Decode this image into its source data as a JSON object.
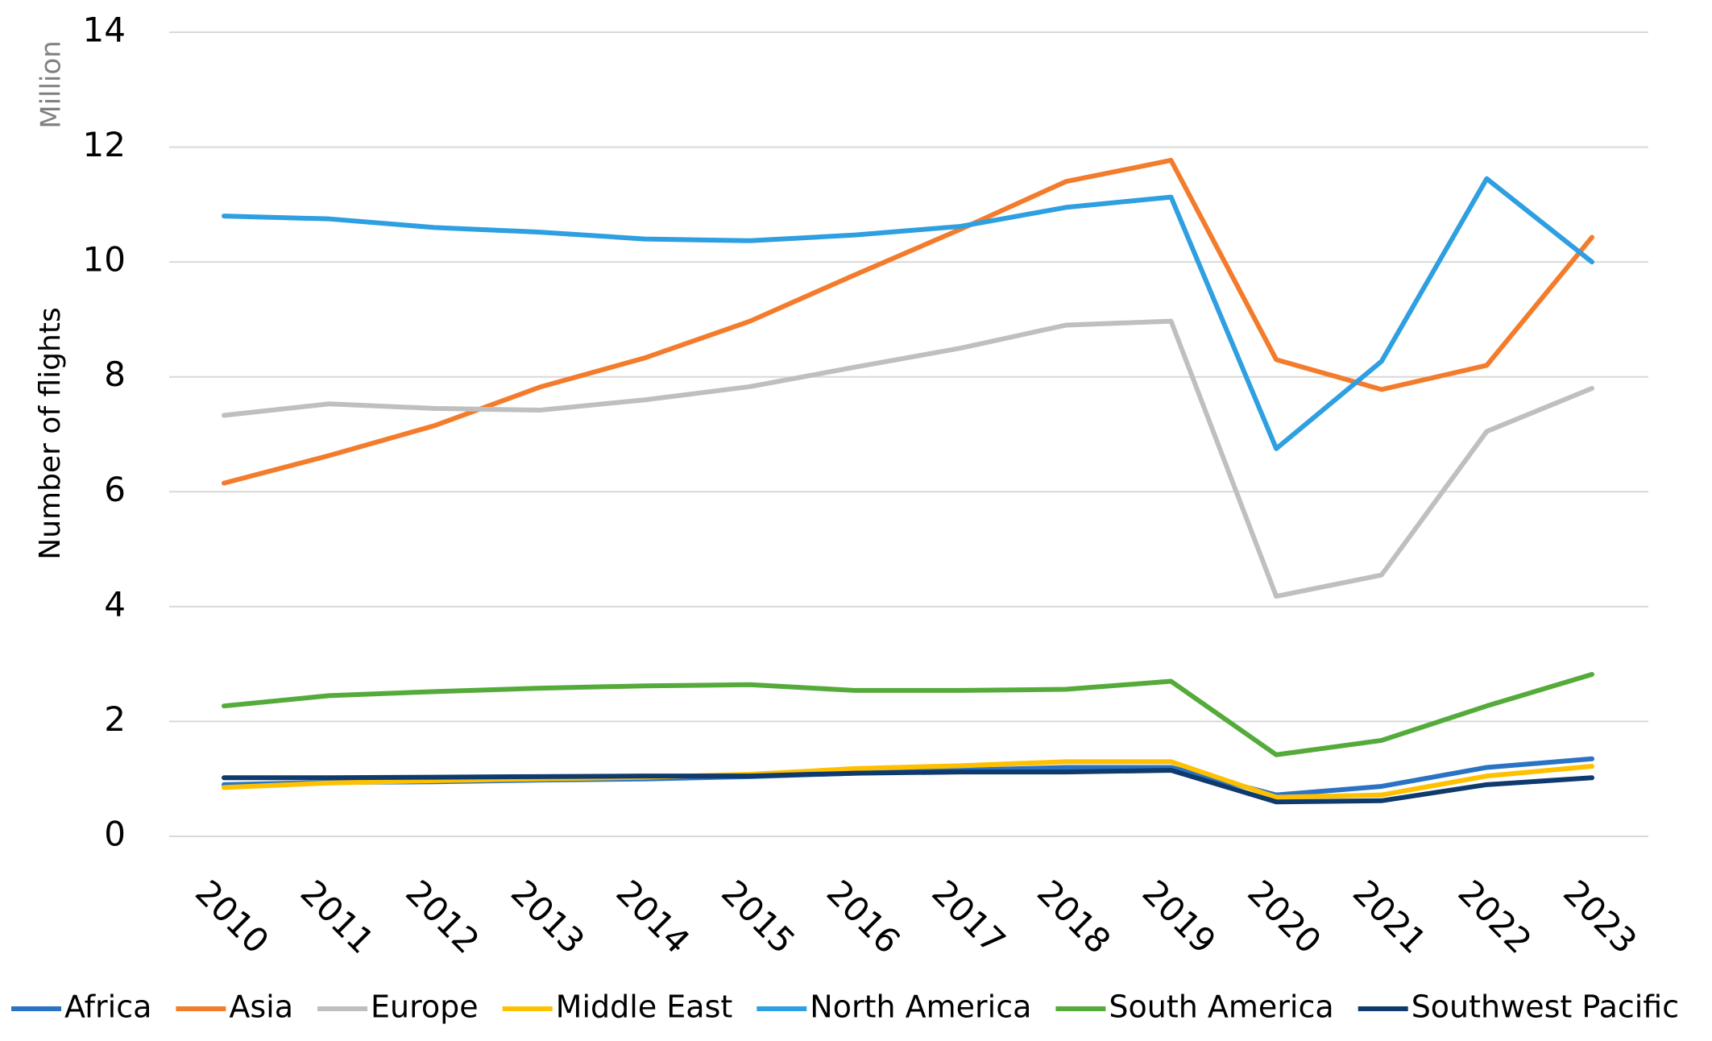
{
  "chart_data": {
    "type": "line",
    "ylabel": "Number of flights",
    "y_unit": "Million",
    "categories": [
      "2010",
      "2011",
      "2012",
      "2013",
      "2014",
      "2015",
      "2016",
      "2017",
      "2018",
      "2019",
      "2020",
      "2021",
      "2022",
      "2023"
    ],
    "ylim": [
      0,
      14
    ],
    "yticks": [
      0,
      2,
      4,
      6,
      8,
      10,
      12,
      14
    ],
    "grid": true,
    "legend": "bottom",
    "series": [
      {
        "name": "Africa",
        "color": "#2a73c4",
        "values": [
          0.9,
          0.94,
          0.95,
          0.98,
          1.0,
          1.04,
          1.1,
          1.15,
          1.2,
          1.2,
          0.72,
          0.87,
          1.2,
          1.35
        ]
      },
      {
        "name": "Asia",
        "color": "#f37c2c",
        "values": [
          6.15,
          6.63,
          7.15,
          7.82,
          8.33,
          8.97,
          9.78,
          10.57,
          11.4,
          11.77,
          8.3,
          7.78,
          8.2,
          10.43
        ]
      },
      {
        "name": "Europe",
        "color": "#bfbfbf",
        "values": [
          7.33,
          7.53,
          7.45,
          7.42,
          7.6,
          7.83,
          8.17,
          8.5,
          8.9,
          8.97,
          4.18,
          4.55,
          7.05,
          7.8
        ]
      },
      {
        "name": "Middle East",
        "color": "#ffc000",
        "values": [
          0.85,
          0.93,
          0.97,
          1.0,
          1.03,
          1.08,
          1.18,
          1.23,
          1.3,
          1.3,
          0.68,
          0.72,
          1.05,
          1.22
        ]
      },
      {
        "name": "North America",
        "color": "#2e9fe0",
        "values": [
          10.8,
          10.75,
          10.6,
          10.52,
          10.4,
          10.37,
          10.47,
          10.62,
          10.95,
          11.13,
          6.75,
          8.27,
          11.45,
          10.0
        ]
      },
      {
        "name": "South America",
        "color": "#54ab3a",
        "values": [
          2.27,
          2.45,
          2.52,
          2.58,
          2.62,
          2.64,
          2.54,
          2.54,
          2.56,
          2.7,
          1.42,
          1.67,
          2.27,
          2.82
        ]
      },
      {
        "name": "Southwest Pacific",
        "color": "#0f3a6e",
        "values": [
          1.02,
          1.02,
          1.03,
          1.04,
          1.05,
          1.05,
          1.1,
          1.12,
          1.12,
          1.15,
          0.6,
          0.62,
          0.9,
          1.02
        ]
      }
    ]
  }
}
